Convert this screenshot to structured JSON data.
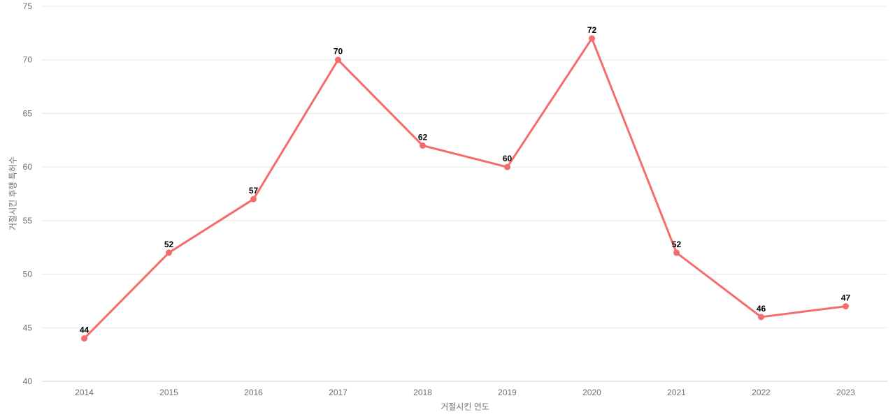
{
  "chart_data": {
    "type": "line",
    "title": "",
    "xlabel": "거절시킨 연도",
    "ylabel": "거절시킨 후행 특허수",
    "categories": [
      "2014",
      "2015",
      "2016",
      "2017",
      "2018",
      "2019",
      "2020",
      "2021",
      "2022",
      "2023"
    ],
    "values": [
      44,
      52,
      57,
      70,
      62,
      60,
      72,
      52,
      46,
      47
    ],
    "point_labels": [
      "44",
      "52",
      "57",
      "70",
      "62",
      "60",
      "72",
      "52",
      "46",
      "47"
    ],
    "ylim": [
      40,
      75
    ],
    "y_ticks": [
      40,
      45,
      50,
      55,
      60,
      65,
      70,
      75
    ],
    "grid": "horizontal",
    "legend": "none",
    "colors": {
      "line": "#f56c6c",
      "marker": "#f56c6c",
      "gridline": "#e8e8e8",
      "axis_line": "#ccd6ec",
      "tick_label": "#6e7079",
      "axis_name": "#6e7079",
      "value_label": "#000000",
      "background": "#ffffff"
    }
  }
}
